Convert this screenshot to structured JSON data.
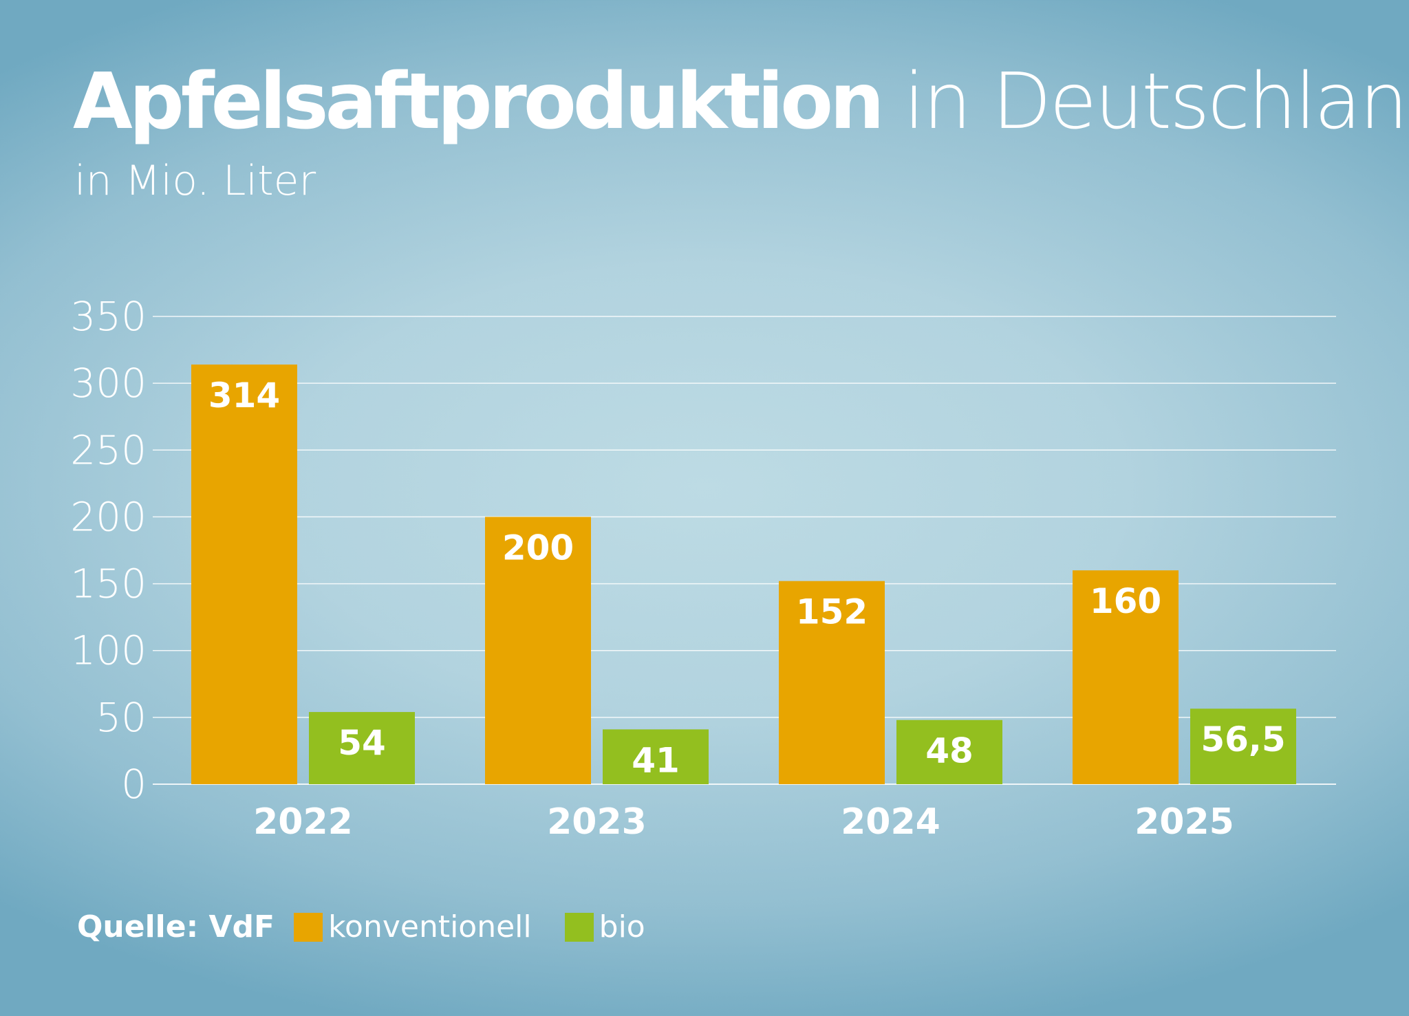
{
  "chart_data": {
    "type": "bar",
    "title_bold": "Apfelsaftproduktion",
    "title_rest": "in Deutschland",
    "subtitle": "in Mio. Liter",
    "categories": [
      "2022",
      "2023",
      "2024",
      "2025"
    ],
    "series": [
      {
        "name": "konventionell",
        "color": "#e8a500",
        "values": [
          314,
          200,
          152,
          160
        ],
        "labels": [
          "314",
          "200",
          "152",
          "160"
        ]
      },
      {
        "name": "bio",
        "color": "#93bf1f",
        "values": [
          54,
          41,
          48,
          56.5
        ],
        "labels": [
          "54",
          "41",
          "48",
          "56,5"
        ]
      }
    ],
    "ylim": [
      0,
      350
    ],
    "yticks": [
      0,
      50,
      100,
      150,
      200,
      250,
      300,
      350
    ],
    "grid": true,
    "legend_placement": "bottom-left",
    "source": "Quelle: VdF"
  }
}
